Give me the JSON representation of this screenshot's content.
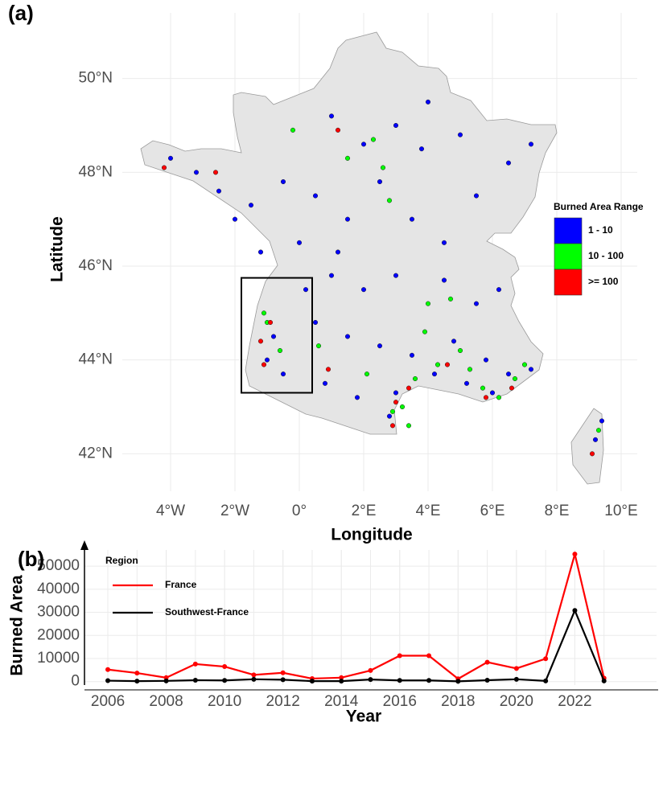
{
  "chart_data": [
    {
      "type": "map-scatter",
      "title": "(a)",
      "xlabel": "Longitude",
      "ylabel": "Latitude",
      "xlim": [
        -5.5,
        10.5
      ],
      "ylim": [
        41.2,
        51.4
      ],
      "xticks": [
        {
          "value": -4,
          "label": "4°W"
        },
        {
          "value": -2,
          "label": "2°W"
        },
        {
          "value": 0,
          "label": "0°"
        },
        {
          "value": 2,
          "label": "2°E"
        },
        {
          "value": 4,
          "label": "4°E"
        },
        {
          "value": 6,
          "label": "6°E"
        },
        {
          "value": 8,
          "label": "8°E"
        },
        {
          "value": 10,
          "label": "10°E"
        }
      ],
      "yticks": [
        {
          "value": 42,
          "label": "42°N"
        },
        {
          "value": 44,
          "label": "44°N"
        },
        {
          "value": 46,
          "label": "46°N"
        },
        {
          "value": 48,
          "label": "48°N"
        },
        {
          "value": 50,
          "label": "50°N"
        }
      ],
      "grid": true,
      "legend_title": "Burned Area Range",
      "legend_position": "right",
      "highlight_box": {
        "x": [
          -1.8,
          0.4
        ],
        "y": [
          43.3,
          45.75
        ]
      },
      "series": [
        {
          "name": "1 - 10",
          "color": "#0000ff",
          "x": [
            -4.0,
            -3.2,
            -2.5,
            -1.5,
            -0.5,
            0.5,
            1.5,
            2.5,
            3.5,
            4.5,
            5.5,
            6.5,
            7.2,
            3.0,
            2.0,
            1.0,
            4.0,
            5.0,
            0.0,
            1.0,
            2.0,
            3.0,
            4.5,
            5.5,
            6.2,
            0.5,
            1.5,
            2.5,
            3.5,
            4.8,
            5.8,
            6.5,
            7.2,
            -0.8,
            -1.0,
            -0.5,
            0.8,
            1.8,
            2.8,
            3.0,
            4.2,
            5.2,
            6.0,
            -1.2,
            0.2,
            -2.0,
            9.2,
            9.4,
            1.2,
            3.8
          ],
          "y": [
            48.3,
            48.0,
            47.6,
            47.3,
            47.8,
            47.5,
            47.0,
            47.8,
            47.0,
            46.5,
            47.5,
            48.2,
            48.6,
            49.0,
            48.6,
            49.2,
            49.5,
            48.8,
            46.5,
            45.8,
            45.5,
            45.8,
            45.7,
            45.2,
            45.5,
            44.8,
            44.5,
            44.3,
            44.1,
            44.4,
            44.0,
            43.7,
            43.8,
            44.5,
            44.0,
            43.7,
            43.5,
            43.2,
            42.8,
            43.3,
            43.7,
            43.5,
            43.3,
            46.3,
            45.5,
            47.0,
            42.3,
            42.7,
            46.3,
            48.5
          ]
        },
        {
          "name": "10 - 100",
          "color": "#00ff00",
          "x": [
            2.3,
            1.5,
            2.9,
            3.2,
            3.6,
            4.3,
            5.0,
            5.7,
            6.7,
            7.0,
            -1.0,
            -0.6,
            -1.1,
            2.1,
            4.7,
            3.9,
            9.3,
            2.6,
            -0.2,
            0.6,
            5.3,
            6.2,
            3.4,
            4.0,
            2.8
          ],
          "y": [
            48.7,
            48.3,
            42.9,
            43.0,
            43.6,
            43.9,
            44.2,
            43.4,
            43.6,
            43.9,
            44.8,
            44.2,
            45.0,
            43.7,
            45.3,
            44.6,
            42.5,
            48.1,
            48.9,
            44.3,
            43.8,
            43.2,
            42.6,
            45.2,
            47.4
          ]
        },
        {
          "name": ">= 100",
          "color": "#ff0000",
          "x": [
            3.0,
            2.9,
            3.4,
            -1.2,
            -0.9,
            -1.1,
            4.6,
            5.8,
            6.6,
            -2.6,
            1.2,
            0.9,
            9.1,
            -4.2
          ],
          "y": [
            43.1,
            42.6,
            43.4,
            44.4,
            44.8,
            43.9,
            43.9,
            43.2,
            43.4,
            48.0,
            48.9,
            43.8,
            42.0,
            48.1
          ]
        }
      ]
    },
    {
      "type": "line",
      "title": "(b)",
      "xlabel": "Year",
      "ylabel": "Burned Area",
      "x": [
        2006,
        2007,
        2008,
        2009,
        2010,
        2011,
        2012,
        2013,
        2014,
        2015,
        2016,
        2017,
        2018,
        2019,
        2020,
        2021,
        2022,
        2023
      ],
      "xlim": [
        2005.2,
        2024.8
      ],
      "xticks": [
        2006,
        2008,
        2010,
        2012,
        2014,
        2016,
        2018,
        2020,
        2022
      ],
      "ylim": [
        -1500,
        57000
      ],
      "yticks": [
        0,
        10000,
        20000,
        30000,
        40000,
        50000
      ],
      "grid": true,
      "legend_title": "Region",
      "legend_position": "upper left",
      "series": [
        {
          "name": "France",
          "color": "#ff0000",
          "values": [
            5200,
            3700,
            1700,
            7600,
            6500,
            2900,
            3800,
            1300,
            1700,
            4800,
            11200,
            11200,
            1200,
            8400,
            5700,
            9900,
            55200,
            1500
          ]
        },
        {
          "name": "Southwest-France",
          "color": "#000000",
          "values": [
            400,
            200,
            300,
            600,
            500,
            1000,
            800,
            200,
            200,
            900,
            500,
            500,
            100,
            600,
            1000,
            300,
            30800,
            300
          ]
        }
      ]
    }
  ]
}
